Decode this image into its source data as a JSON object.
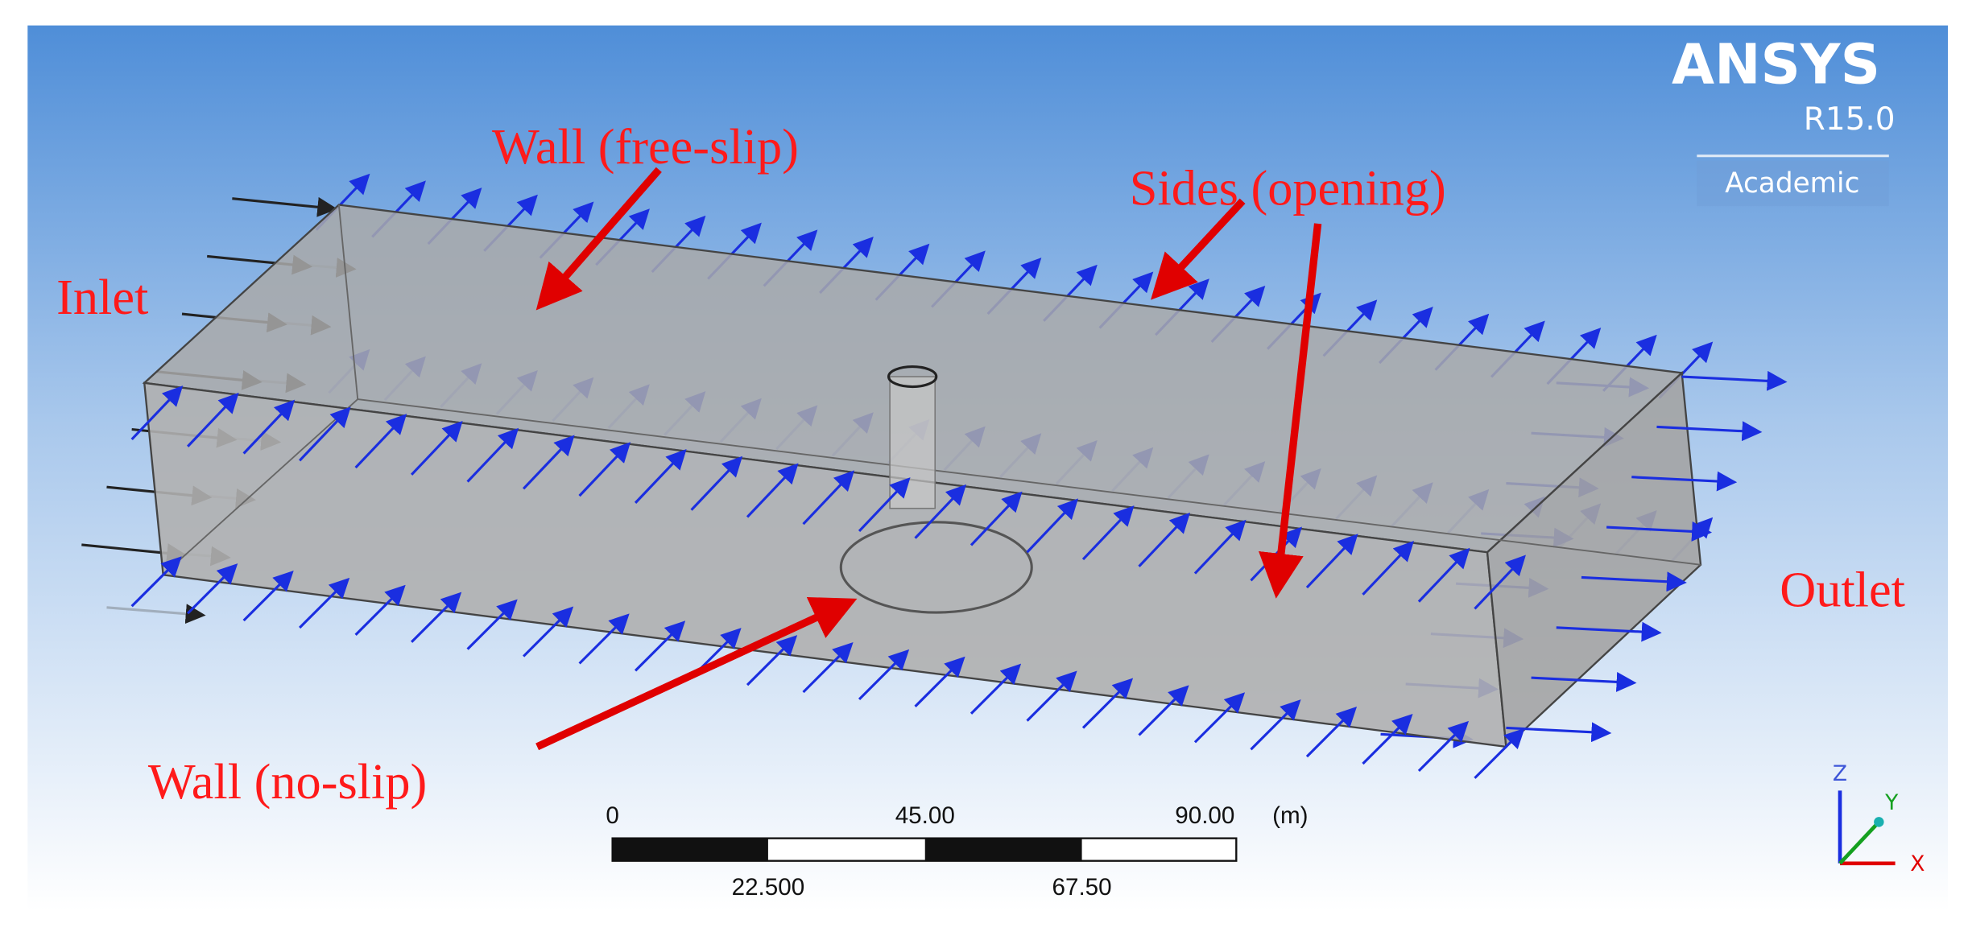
{
  "logo": {
    "name": "ANSYS",
    "version": "R15.0",
    "edition": "Academic"
  },
  "labels": {
    "wall_top": "Wall (free-slip)",
    "sides": "Sides (opening)",
    "inlet": "Inlet",
    "outlet": "Outlet",
    "wall_bottom": "Wall (no-slip)"
  },
  "scale_bar": {
    "top_labels": [
      "0",
      "45.00",
      "90.00"
    ],
    "unit": "(m)",
    "bottom_labels": [
      "22.500",
      "67.50"
    ]
  },
  "axes": {
    "z": "Z",
    "y": "Y",
    "x": "X"
  }
}
